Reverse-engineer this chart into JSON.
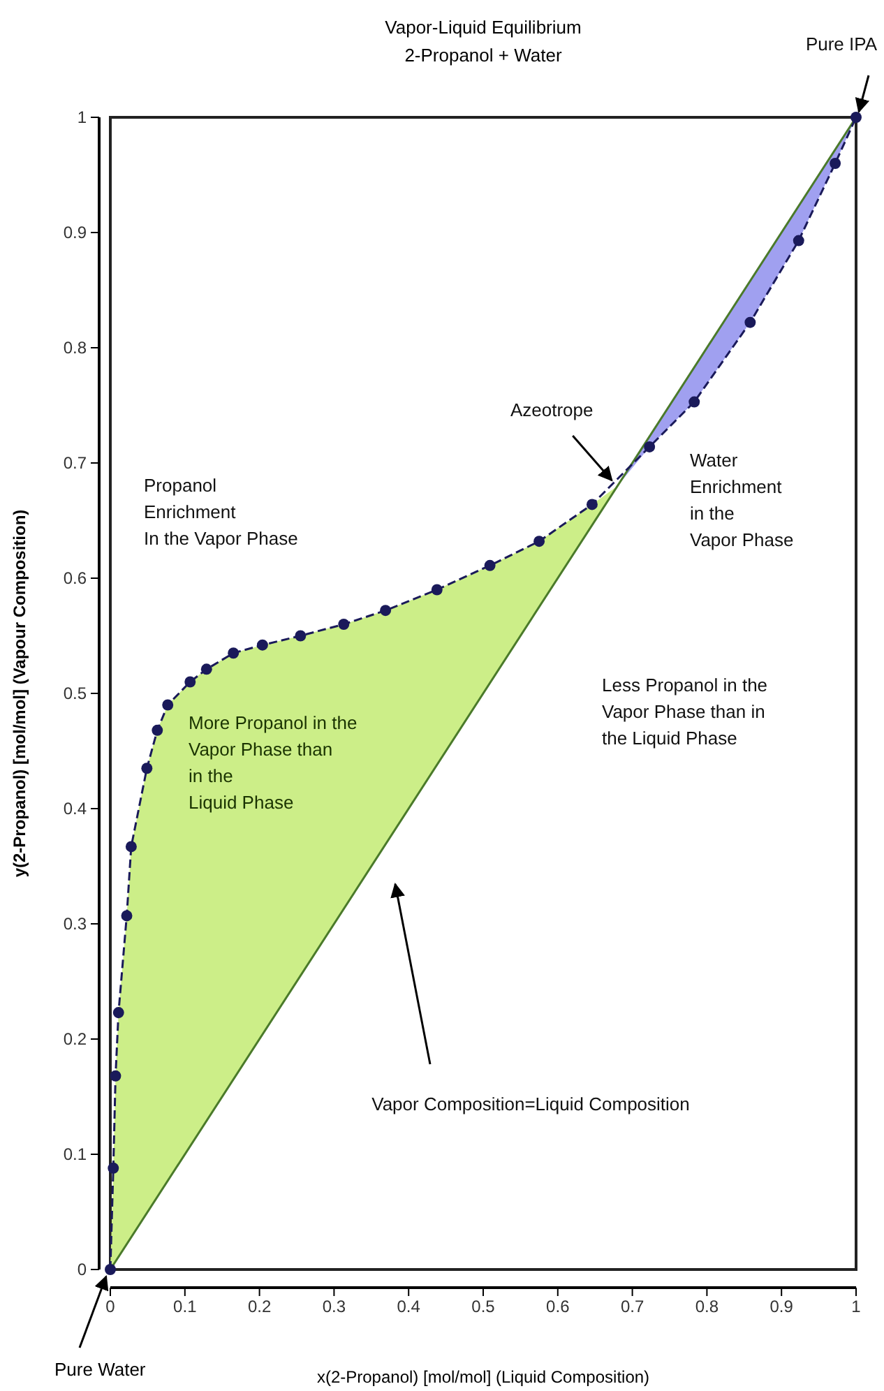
{
  "chart_data": {
    "type": "line",
    "title": "Vapor-Liquid Equilibrium",
    "subtitle": "2-Propanol + Water",
    "xlabel": "x(2-Propanol) [mol/mol] (Liquid Composition)",
    "ylabel": "y(2-Propanol) [mol/mol] (Vapour Composition)",
    "xlim": [
      0,
      1
    ],
    "ylim": [
      0,
      1
    ],
    "xticks": [
      0,
      0.1,
      0.2,
      0.3,
      0.4,
      0.5,
      0.6,
      0.7,
      0.8,
      0.9,
      1
    ],
    "yticks": [
      0,
      0.1,
      0.2,
      0.3,
      0.4,
      0.5,
      0.6,
      0.7,
      0.8,
      0.9,
      1
    ],
    "series": [
      {
        "type": "area",
        "color": "#ccee88",
        "x": [
          0,
          0.004,
          0.007,
          0.011,
          0.022,
          0.028,
          0.049,
          0.063,
          0.077,
          0.107,
          0.129,
          0.165,
          0.204,
          0.255,
          0.313,
          0.369,
          0.438,
          0.509,
          0.575,
          0.646,
          0.68
        ],
        "values": [
          0,
          0.088,
          0.168,
          0.223,
          0.307,
          0.367,
          0.435,
          0.468,
          0.49,
          0.51,
          0.521,
          0.535,
          0.542,
          0.55,
          0.56,
          0.572,
          0.59,
          0.611,
          0.632,
          0.664,
          0.68
        ]
      },
      {
        "type": "area",
        "color": "#a0a0f0",
        "x": [
          0.68,
          0.723,
          0.783,
          0.858,
          0.923,
          0.972,
          1
        ],
        "values": [
          0.68,
          0.714,
          0.753,
          0.822,
          0.893,
          0.96,
          1
        ]
      },
      {
        "type": "line",
        "color": "#4a7a2a",
        "marker": "none",
        "line_style": "solid",
        "x": [
          0,
          1
        ],
        "values": [
          0,
          1
        ]
      },
      {
        "color": "#1a1a5a",
        "marker": "circle",
        "line_style": "dashed",
        "x": [
          0,
          0.004,
          0.007,
          0.011,
          0.022,
          0.028,
          0.049,
          0.063,
          0.077,
          0.107,
          0.129,
          0.165,
          0.204,
          0.255,
          0.313,
          0.369,
          0.438,
          0.509,
          0.575,
          0.646,
          0.723,
          0.783,
          0.858,
          0.923,
          0.972,
          1
        ],
        "values": [
          0,
          0.088,
          0.168,
          0.223,
          0.307,
          0.367,
          0.435,
          0.468,
          0.49,
          0.51,
          0.521,
          0.535,
          0.542,
          0.55,
          0.56,
          0.572,
          0.59,
          0.611,
          0.632,
          0.664,
          0.714,
          0.753,
          0.822,
          0.893,
          0.96,
          1
        ]
      }
    ],
    "annotations": [
      {
        "text": "Pure Water",
        "x": 0,
        "y": 0
      },
      "Pure IPA",
      {
        "text": "Azeotrope",
        "x": 0.68,
        "y": 0.68
      },
      "Vapor Composition=Liquid Composition",
      "Propanol\nEnrichment\nIn the Vapor Phase",
      "Water\nEnrichment\nin the\nVapor Phase",
      "More Propanol in the\nVapor Phase than\nin the\nLiquid Phase",
      "Less Propanol in the\nVapor Phase than in\nthe Liquid Phase"
    ]
  }
}
